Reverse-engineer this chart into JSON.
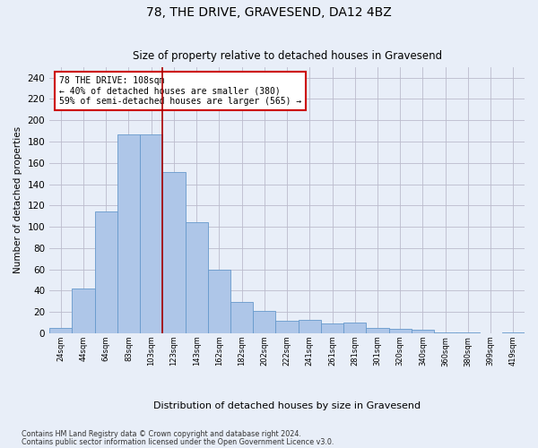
{
  "title1": "78, THE DRIVE, GRAVESEND, DA12 4BZ",
  "title2": "Size of property relative to detached houses in Gravesend",
  "xlabel": "Distribution of detached houses by size in Gravesend",
  "ylabel": "Number of detached properties",
  "categories": [
    "24sqm",
    "44sqm",
    "64sqm",
    "83sqm",
    "103sqm",
    "123sqm",
    "143sqm",
    "162sqm",
    "182sqm",
    "202sqm",
    "222sqm",
    "241sqm",
    "261sqm",
    "281sqm",
    "301sqm",
    "320sqm",
    "340sqm",
    "360sqm",
    "380sqm",
    "399sqm",
    "419sqm"
  ],
  "values": [
    5,
    42,
    114,
    187,
    187,
    151,
    104,
    60,
    29,
    21,
    12,
    13,
    9,
    10,
    5,
    4,
    3,
    1,
    1,
    0,
    1
  ],
  "bar_color": "#aec6e8",
  "bar_edge_color": "#6699cc",
  "vline_x": 4.5,
  "vline_color": "#aa0000",
  "annotation_text": "78 THE DRIVE: 108sqm\n← 40% of detached houses are smaller (380)\n59% of semi-detached houses are larger (565) →",
  "annotation_box_color": "#ffffff",
  "annotation_box_edge": "#cc0000",
  "ylim": [
    0,
    250
  ],
  "yticks": [
    0,
    20,
    40,
    60,
    80,
    100,
    120,
    140,
    160,
    180,
    200,
    220,
    240
  ],
  "footer1": "Contains HM Land Registry data © Crown copyright and database right 2024.",
  "footer2": "Contains public sector information licensed under the Open Government Licence v3.0.",
  "background_color": "#e8eef8"
}
